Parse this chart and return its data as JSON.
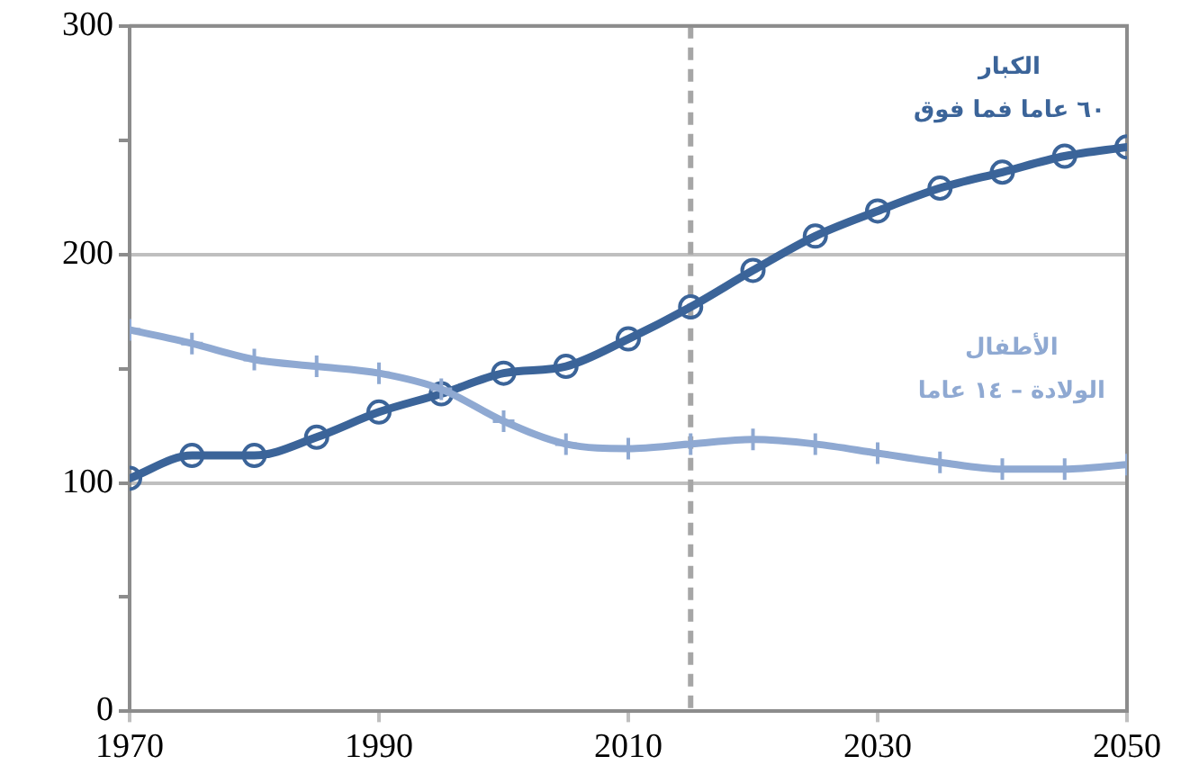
{
  "chart_data": {
    "type": "line",
    "x": [
      1970,
      1975,
      1980,
      1985,
      1990,
      1995,
      2000,
      2005,
      2010,
      2015,
      2020,
      2025,
      2030,
      2035,
      2040,
      2045,
      2050
    ],
    "series": [
      {
        "name": "الكبار\n٦٠ عاما فما فوق",
        "color": "#3b6499",
        "marker": "circle",
        "values": [
          102,
          112,
          112,
          120,
          131,
          139,
          148,
          151,
          163,
          177,
          193,
          208,
          219,
          229,
          236,
          243,
          247
        ]
      },
      {
        "name": "الأطفال\nالولادة – ١٤ عاما",
        "color": "#8fa9d2",
        "marker": "cross",
        "values": [
          167,
          161,
          154,
          151,
          148,
          141,
          127,
          117,
          115,
          117,
          119,
          117,
          113,
          109,
          106,
          106,
          108
        ]
      }
    ],
    "xlim": [
      1970,
      2050
    ],
    "xticks": [
      1970,
      1990,
      2010,
      2030,
      2050
    ],
    "ylim": [
      0,
      300
    ],
    "yticks": [
      0,
      {
        "value": 50,
        "label": null
      },
      100,
      {
        "value": 150,
        "label": null
      },
      200,
      {
        "value": 250,
        "label": null
      },
      300
    ],
    "grid": "y",
    "legend": false,
    "line_style": "solid",
    "ref_lines": [
      {
        "axis": "x",
        "value": 2015,
        "color": "#a6a6a6",
        "line_style": "dashed"
      }
    ]
  }
}
